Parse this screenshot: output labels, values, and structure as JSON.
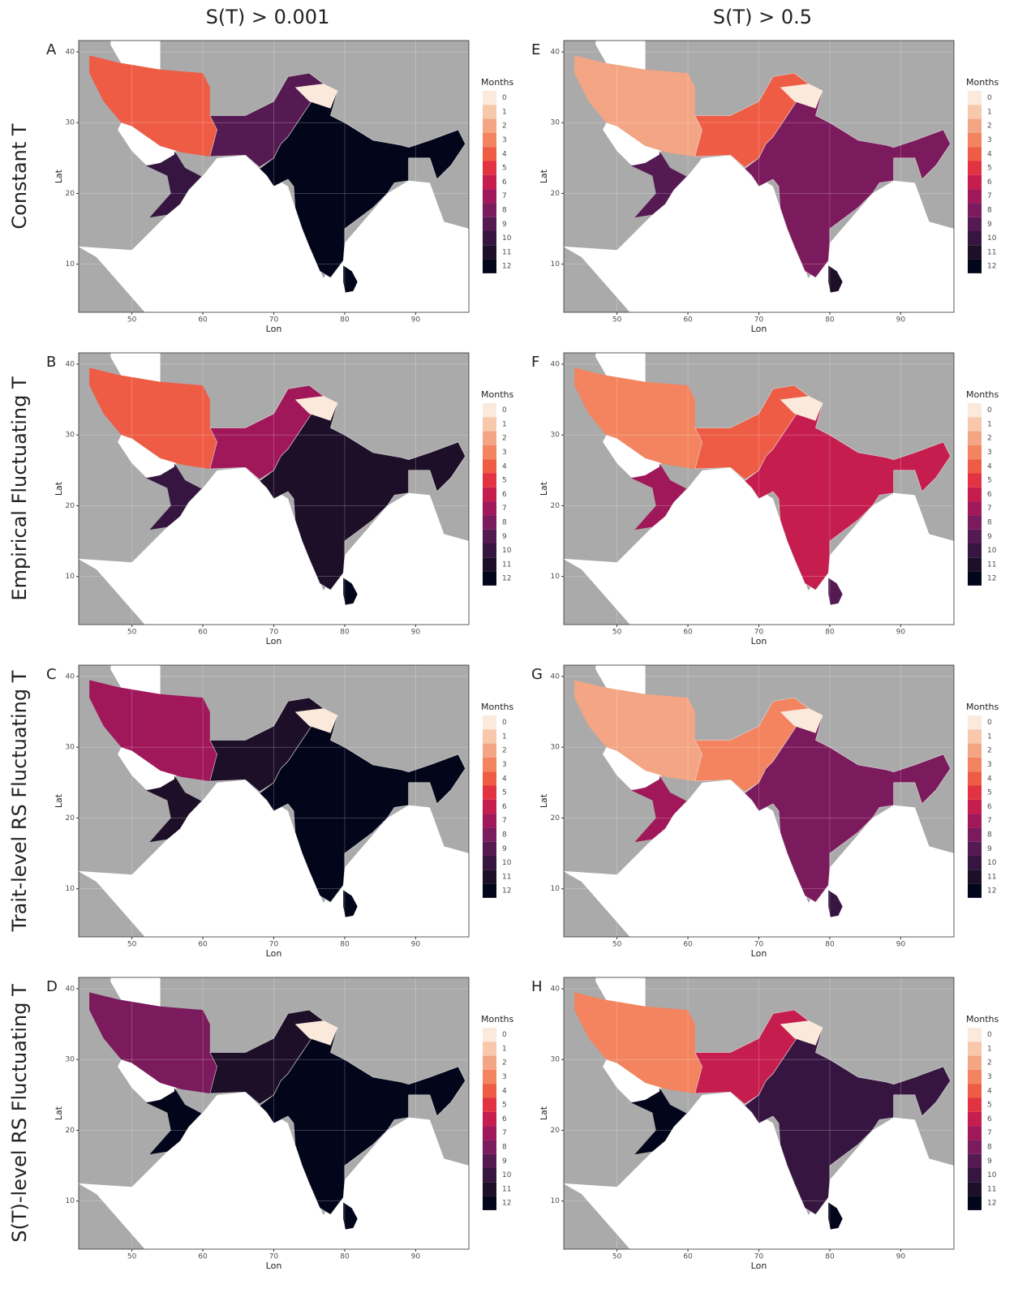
{
  "column_titles": [
    "S(T) > 0.001",
    "S(T) > 0.5"
  ],
  "row_labels": [
    "Constant T",
    "Empirical Fluctuating T",
    "Trait-level RS Fluctuating T",
    "S(T)-level RS Fluctuating T"
  ],
  "panels": [
    {
      "letter": "A"
    },
    {
      "letter": "E"
    },
    {
      "letter": "B"
    },
    {
      "letter": "F"
    },
    {
      "letter": "C"
    },
    {
      "letter": "G"
    },
    {
      "letter": "D"
    },
    {
      "letter": "H"
    }
  ],
  "axes": {
    "x_label": "Lon",
    "y_label": "Lat",
    "xlim": [
      42.5,
      97.5
    ],
    "ylim": [
      3.2,
      41.6
    ],
    "xticks": [
      50,
      60,
      70,
      80,
      90
    ],
    "yticks": [
      10,
      20,
      30,
      40
    ]
  },
  "legend": {
    "title": "Months",
    "levels": [
      0,
      1,
      2,
      3,
      4,
      5,
      6,
      7,
      8,
      9,
      10,
      11,
      12
    ],
    "colors": [
      "#fbe9dc",
      "#f7c8ab",
      "#f4a584",
      "#f3845f",
      "#ee5c45",
      "#e13342",
      "#c61d4f",
      "#a0185a",
      "#7b1a5c",
      "#561a53",
      "#361640",
      "#1e0f28",
      "#03051a"
    ]
  }
}
